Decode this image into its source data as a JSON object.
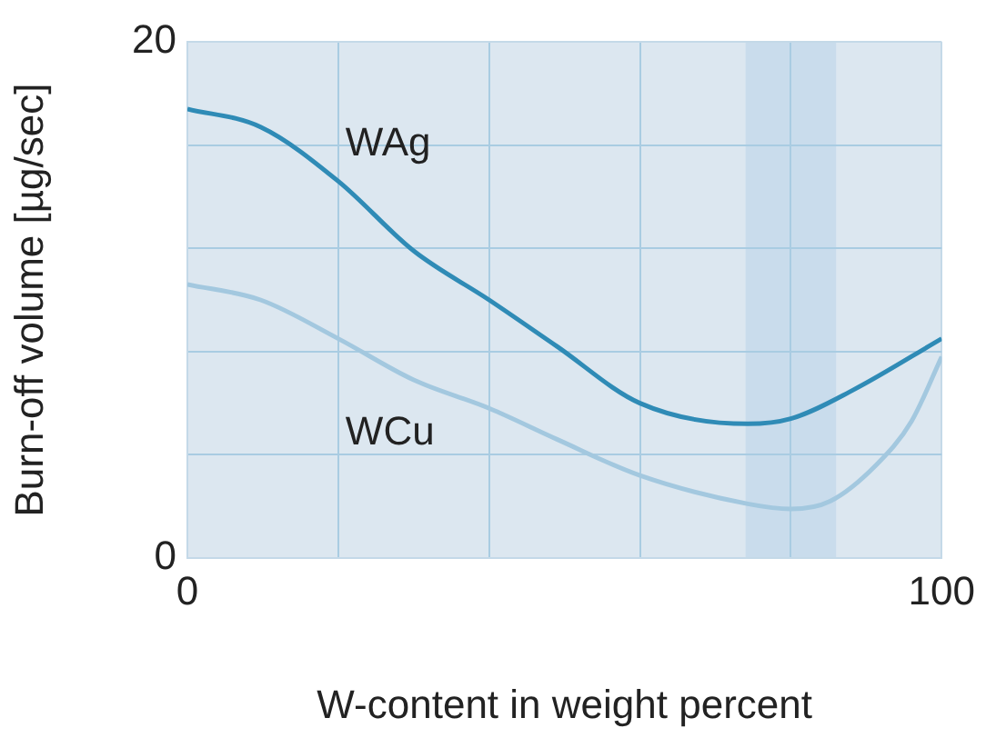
{
  "chart_data": {
    "type": "line",
    "xlabel": "W-content in weight percent",
    "ylabel": "Burn-off volume [µg/sec]",
    "xlim": [
      0,
      100
    ],
    "ylim": [
      0,
      20
    ],
    "xticks": [
      0,
      {
        "value": 20,
        "label": null
      },
      {
        "value": 40,
        "label": null
      },
      {
        "value": 60,
        "label": null
      },
      {
        "value": 80,
        "label": null
      },
      100
    ],
    "yticks": [
      0,
      {
        "value": 4,
        "label": null
      },
      {
        "value": 8,
        "label": null
      },
      {
        "value": 12,
        "label": null
      },
      {
        "value": 16,
        "label": null
      },
      20
    ],
    "grid": true,
    "legend": false,
    "marker": "none",
    "line_style": "solid",
    "bands": [
      {
        "axis": "x",
        "from": 74,
        "to": 86,
        "color": "#c9dcec"
      }
    ],
    "series": [
      {
        "name": "WAg",
        "color": "#2f8bb6",
        "x": [
          0,
          9.7,
          20,
          30,
          40,
          49,
          60,
          74.3,
          80,
          88.2,
          100
        ],
        "values": [
          17.4,
          16.7,
          14.6,
          11.9,
          10.0,
          8.2,
          6.0,
          5.2,
          5.4,
          6.5,
          8.5
        ]
      },
      {
        "name": "WCu",
        "color": "#a3c8df",
        "x": [
          0,
          9.7,
          20,
          30,
          40,
          49,
          60,
          74.3,
          80,
          85.2,
          91.3,
          96,
          100
        ],
        "values": [
          10.6,
          10.0,
          8.5,
          6.9,
          5.8,
          4.6,
          3.2,
          2.1,
          1.9,
          2.2,
          3.6,
          5.3,
          7.8
        ]
      }
    ]
  }
}
